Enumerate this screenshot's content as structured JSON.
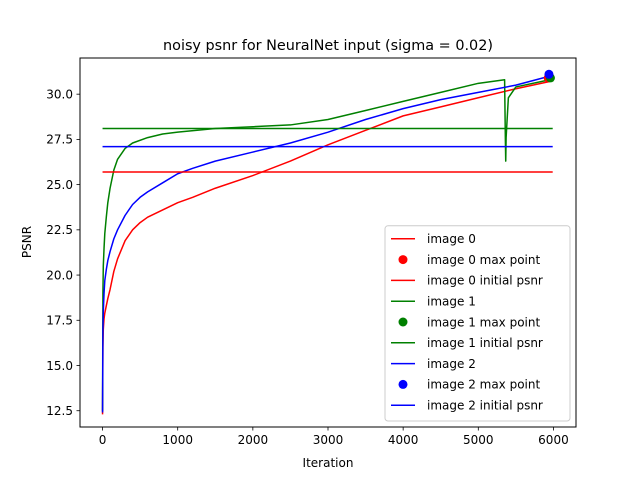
{
  "chart_data": {
    "type": "line",
    "title": "noisy psnr for NeuralNet input (sigma = 0.02)",
    "xlabel": "Iteration",
    "ylabel": "PSNR",
    "xlim": [
      -300,
      6300
    ],
    "ylim": [
      11.6,
      32.0
    ],
    "xticks": [
      0,
      1000,
      2000,
      3000,
      4000,
      5000,
      6000
    ],
    "yticks": [
      12.5,
      15.0,
      17.5,
      20.0,
      22.5,
      25.0,
      27.5,
      30.0
    ],
    "grid": false,
    "legend_position": "lower-right",
    "series": [
      {
        "name": "image 0",
        "kind": "line",
        "color": "#ff0000",
        "x": [
          0,
          5,
          10,
          20,
          30,
          50,
          70,
          100,
          150,
          200,
          300,
          400,
          500,
          600,
          800,
          1000,
          1200,
          1500,
          2000,
          2500,
          3000,
          3500,
          4000,
          4500,
          5000,
          5500,
          5950
        ],
        "y": [
          12.3,
          16.0,
          17.0,
          17.6,
          17.9,
          18.3,
          18.7,
          19.2,
          20.2,
          20.9,
          21.9,
          22.5,
          22.9,
          23.2,
          23.6,
          24.0,
          24.3,
          24.8,
          25.5,
          26.3,
          27.2,
          28.0,
          28.8,
          29.3,
          29.8,
          30.3,
          30.7
        ]
      },
      {
        "name": "image 0 max point",
        "kind": "point",
        "color": "#ff0000",
        "x": [
          5930
        ],
        "y": [
          30.9
        ]
      },
      {
        "name": "image 0 initial psnr",
        "kind": "hline",
        "color": "#ff0000",
        "y": 25.7,
        "x_range": [
          0,
          5990
        ]
      },
      {
        "name": "image 1",
        "kind": "line",
        "color": "#008000",
        "x": [
          0,
          5,
          10,
          20,
          30,
          50,
          70,
          100,
          150,
          200,
          300,
          400,
          600,
          800,
          1000,
          1500,
          2000,
          2500,
          3000,
          3500,
          4000,
          4500,
          5000,
          5350,
          5360,
          5365,
          5370,
          5400,
          5500,
          5950
        ],
        "y": [
          12.5,
          19.0,
          20.5,
          21.5,
          22.3,
          23.2,
          24.0,
          24.8,
          25.8,
          26.4,
          27.0,
          27.3,
          27.6,
          27.8,
          27.9,
          28.1,
          28.2,
          28.3,
          28.6,
          29.1,
          29.6,
          30.1,
          30.6,
          30.8,
          27.5,
          26.3,
          27.6,
          29.8,
          30.4,
          30.8
        ]
      },
      {
        "name": "image 1 max point",
        "kind": "point",
        "color": "#008000",
        "x": [
          5960
        ],
        "y": [
          30.9
        ]
      },
      {
        "name": "image 1 initial psnr",
        "kind": "hline",
        "color": "#008000",
        "y": 28.1,
        "x_range": [
          0,
          5990
        ]
      },
      {
        "name": "image 2",
        "kind": "line",
        "color": "#0000ff",
        "x": [
          0,
          5,
          10,
          20,
          30,
          50,
          70,
          100,
          150,
          200,
          300,
          400,
          500,
          600,
          800,
          1000,
          1200,
          1500,
          2000,
          2500,
          3000,
          3500,
          4000,
          4500,
          5000,
          5500,
          5950
        ],
        "y": [
          12.4,
          17.0,
          18.0,
          19.0,
          19.7,
          20.3,
          20.8,
          21.3,
          22.0,
          22.5,
          23.3,
          23.9,
          24.3,
          24.6,
          25.1,
          25.6,
          25.9,
          26.3,
          26.8,
          27.3,
          27.9,
          28.6,
          29.2,
          29.7,
          30.1,
          30.5,
          31.0
        ]
      },
      {
        "name": "image 2 max point",
        "kind": "point",
        "color": "#0000ff",
        "x": [
          5940
        ],
        "y": [
          31.1
        ]
      },
      {
        "name": "image 2 initial psnr",
        "kind": "hline",
        "color": "#0000ff",
        "y": 27.1,
        "x_range": [
          0,
          5990
        ]
      }
    ]
  }
}
